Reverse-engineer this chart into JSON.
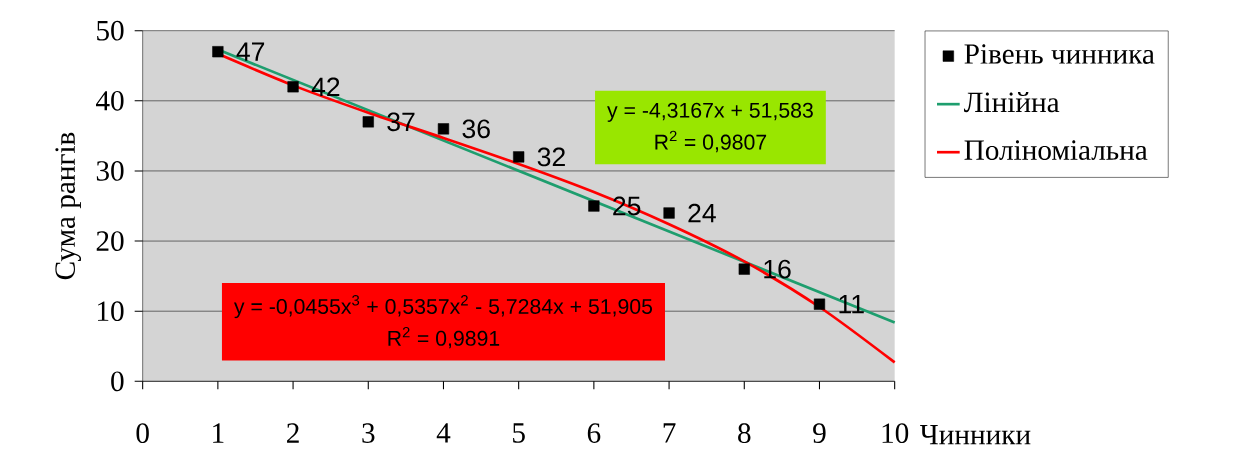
{
  "chart_data": {
    "type": "scatter",
    "xlabel": "Чинники",
    "ylabel": "Сума рангів",
    "xlim": [
      0,
      10
    ],
    "xticks": [
      0,
      1,
      2,
      3,
      4,
      5,
      6,
      7,
      8,
      9,
      10
    ],
    "ylim": [
      0,
      50
    ],
    "yticks": [
      0,
      10,
      20,
      30,
      40,
      50
    ],
    "grid": "y",
    "legend": "right",
    "series": [
      {
        "name": "Рівень чинника",
        "marker": "square",
        "color": "#000000",
        "x": [
          1,
          2,
          3,
          4,
          5,
          6,
          7,
          8,
          9
        ],
        "values": [
          47,
          42,
          37,
          36,
          32,
          25,
          24,
          16,
          11
        ],
        "value_labels": [
          "47",
          "42",
          "37",
          "36",
          "32",
          "25",
          "24",
          "16",
          "11"
        ]
      },
      {
        "name": "Лінійна",
        "type": "line",
        "color": "#1e9e6e",
        "x": [
          1,
          10
        ],
        "values": [
          47.3,
          8.4
        ]
      },
      {
        "name": "Поліноміальна",
        "type": "line",
        "color": "#ff0000",
        "x": [
          1,
          2,
          3,
          4,
          5,
          6,
          7,
          8,
          9,
          10
        ],
        "values": [
          46.7,
          42.2,
          38.3,
          34.7,
          31.0,
          27.0,
          22.4,
          17.1,
          10.6,
          2.7
        ]
      }
    ],
    "annotations": [
      "y = -4,3167x + 51,583",
      "R$^{2}$ = 0,9807",
      "y = -0,0455x$^{3}$ + 0,5357x$^{2}$ - 5,7284x + 51,905",
      "R$^{2}$ = 0,9891"
    ]
  }
}
